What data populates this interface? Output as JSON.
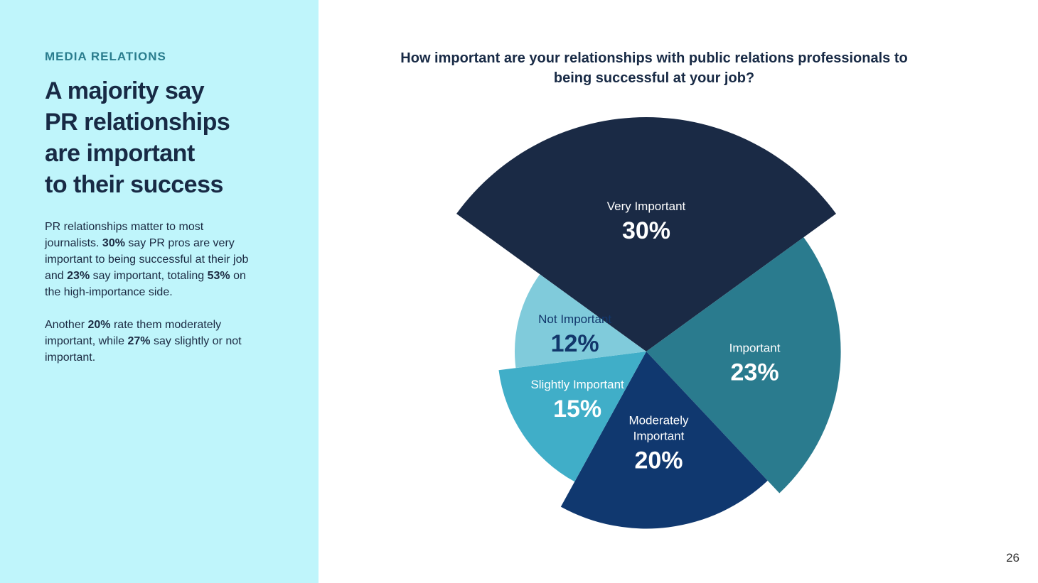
{
  "sidebar": {
    "section_label": "MEDIA RELATIONS",
    "headline_lines": [
      "A majority say",
      "PR relationships",
      "are important",
      "to their success"
    ],
    "para1": {
      "t1": "PR relationships matter to most journalists. ",
      "b1": "30%",
      "t2": " say PR pros are very important to being successful at their job and ",
      "b2": "23%",
      "t3": " say important, totaling ",
      "b3": "53%",
      "t4": " on the high-importance side."
    },
    "para2": {
      "t1": "Another ",
      "b1": "20%",
      "t2": " rate them moderately important, while ",
      "b2": "27%",
      "t3": " say slightly or not important."
    }
  },
  "chart_data": {
    "type": "pie",
    "title": "How important are your relationships with public relations professionals to being successful at your job?",
    "slices": [
      {
        "label": "Very Important",
        "label_lines": [
          "Very Important"
        ],
        "value": 30,
        "display": "30%",
        "color": "#1a2a45",
        "label_color": "#ffffff"
      },
      {
        "label": "Important",
        "label_lines": [
          "Important"
        ],
        "value": 23,
        "display": "23%",
        "color": "#2a7b8e",
        "label_color": "#ffffff"
      },
      {
        "label": "Moderately Important",
        "label_lines": [
          "Moderately",
          "Important"
        ],
        "value": 20,
        "display": "20%",
        "color": "#10386f",
        "label_color": "#ffffff"
      },
      {
        "label": "Slightly Important",
        "label_lines": [
          "Slightly Important"
        ],
        "value": 15,
        "display": "15%",
        "color": "#40aec8",
        "label_color": "#ffffff"
      },
      {
        "label": "Not Important",
        "label_lines": [
          "Not Important"
        ],
        "value": 12,
        "display": "12%",
        "color": "#80cbdb",
        "label_color": "#12376b"
      }
    ]
  },
  "page_number": "26"
}
